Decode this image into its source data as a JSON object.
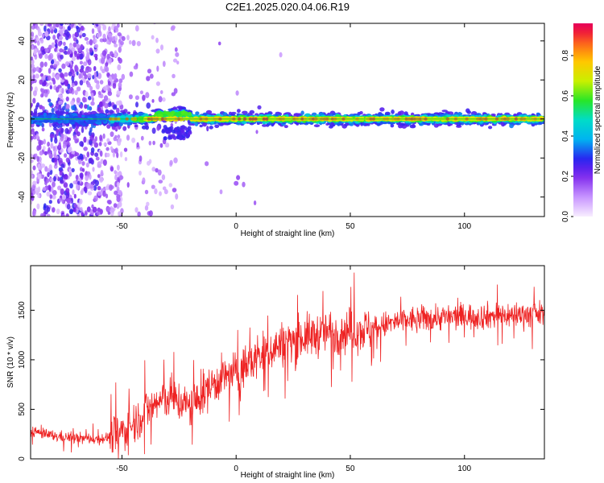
{
  "title": "C2E1.2025.020.04.06.R19",
  "chart_data": [
    {
      "type": "heatmap",
      "xlabel": "Height of straight line (km)",
      "ylabel": "Frequency (Hz)",
      "xlim": [
        -90,
        135
      ],
      "ylim": [
        -50,
        49
      ],
      "xticks": [
        -50,
        0,
        50,
        100
      ],
      "yticks": [
        -40,
        -20,
        0,
        20,
        40
      ],
      "colorbar": {
        "label": "Normalized spectral amplitude",
        "range": [
          0,
          0.96
        ],
        "ticks": [
          0.0,
          0.2,
          0.4,
          0.6,
          0.8
        ],
        "tick_labels": [
          "0.0",
          "0.2",
          "0.4",
          "0.6",
          "0.8"
        ]
      },
      "features": {
        "central_band_frequency_hz": 0,
        "central_band_start_km": -55,
        "central_band_peak_amplitude": 0.9,
        "noisy_region_km": [
          -90,
          -50
        ],
        "isolated_blob": {
          "x_km": 0,
          "y_hz": -33
        }
      }
    },
    {
      "type": "line",
      "xlabel": "Height of straight line (km)",
      "ylabel": "SNR (10 * v/v)",
      "xlim": [
        -90,
        135
      ],
      "ylim": [
        0,
        1950
      ],
      "xticks": [
        -50,
        0,
        50,
        100
      ],
      "yticks": [
        0,
        500,
        1000,
        1500
      ],
      "color": "#ee2222",
      "series": [
        {
          "x": [
            -90,
            -80,
            -70,
            -60,
            -55,
            -50,
            -45,
            -40,
            -35,
            -30,
            -25,
            -20,
            -15,
            -10,
            -5,
            0,
            5,
            10,
            15,
            20,
            25,
            30,
            35,
            40,
            45,
            50,
            55,
            60,
            65,
            70,
            75,
            80,
            85,
            90,
            95,
            100,
            105,
            110,
            115,
            120,
            125,
            130,
            135
          ],
          "y": [
            280,
            230,
            210,
            200,
            220,
            270,
            360,
            480,
            560,
            620,
            580,
            520,
            640,
            760,
            830,
            860,
            950,
            1040,
            1100,
            1160,
            1200,
            1230,
            1250,
            1280,
            1280,
            1300,
            1300,
            1320,
            1350,
            1380,
            1400,
            1410,
            1420,
            1430,
            1430,
            1440,
            1440,
            1440,
            1450,
            1450,
            1460,
            1460,
            1460
          ]
        }
      ]
    }
  ]
}
